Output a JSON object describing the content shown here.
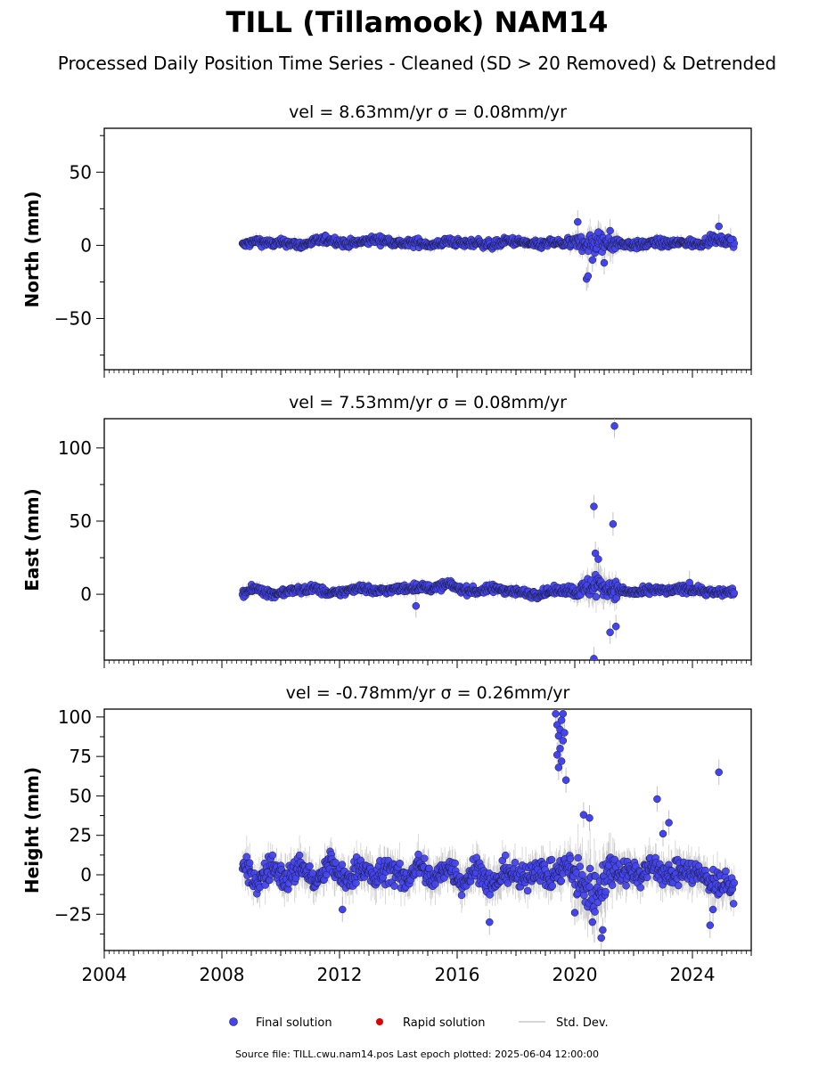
{
  "title": "TILL (Tillamook) NAM14",
  "subtitle": "Processed Daily Position Time Series - Cleaned (SD > 20 Removed) & Detrended",
  "footer": "Source file: TILL.cwu.nam14.pos  Last epoch plotted: 2025-06-04 12:00:00",
  "legend": [
    {
      "label": "Final solution",
      "color": "#4444ee",
      "kind": "dot"
    },
    {
      "label": "Rapid solution",
      "color": "#dd0000",
      "kind": "dot"
    },
    {
      "label": "Std. Dev.",
      "color": "#c8c8c8",
      "kind": "line"
    }
  ],
  "x_ticks": [
    "2004",
    "2008",
    "2012",
    "2016",
    "2020",
    "2024"
  ],
  "colors": {
    "final": "#4444ee",
    "stroke": "#1a1a33",
    "errorbar": "#aaaaaa"
  },
  "chart_data": [
    {
      "type": "scatter",
      "title": "vel = 8.63mm/yr   σ = 0.08mm/yr",
      "ylabel": "North (mm)",
      "xlim": [
        2004,
        2026
      ],
      "ylim": [
        -85,
        80
      ],
      "yticks": [
        50,
        0,
        -50
      ],
      "ytick_labels": [
        "50",
        "0",
        "−50"
      ],
      "data_start": 2008.7,
      "data_end": 2025.42,
      "series": [
        {
          "kind": "trace",
          "x": [
            2008.7,
            2009.2,
            2009.7,
            2010.2,
            2010.7,
            2011.2,
            2011.7,
            2012.2,
            2012.7,
            2013.2,
            2013.7,
            2014.2,
            2014.7,
            2015.2,
            2015.7,
            2016.2,
            2016.7,
            2017.2,
            2017.7,
            2018.2,
            2018.7,
            2019.2,
            2019.7,
            2020.2,
            2020.7,
            2021.2,
            2021.7,
            2022.2,
            2022.7,
            2023.2,
            2023.7,
            2024.2,
            2024.7,
            2025.42
          ],
          "y": [
            0,
            3,
            1,
            2,
            0,
            3,
            4,
            1,
            2,
            4,
            3,
            1,
            2,
            0,
            3,
            1,
            2,
            0,
            3,
            2,
            0,
            2,
            1,
            2,
            1,
            2,
            1,
            0,
            2,
            1,
            2,
            1,
            4,
            2
          ],
          "spread": [
            3,
            3,
            3,
            3,
            3,
            3,
            3,
            3,
            3,
            3,
            3,
            3,
            3,
            3,
            3,
            3,
            3,
            3,
            3,
            3,
            3,
            3,
            3,
            6,
            9,
            7,
            3,
            3,
            3,
            3,
            3,
            3,
            3,
            3
          ]
        },
        {
          "kind": "outliers",
          "x": [
            2020.1,
            2020.4,
            2020.45,
            2020.6,
            2020.8,
            2021.0,
            2021.2,
            2024.9,
            2025.3
          ],
          "y": [
            16,
            -23,
            -21,
            -10,
            9,
            -12,
            10,
            13,
            4
          ]
        }
      ]
    },
    {
      "type": "scatter",
      "title": "vel = 7.53mm/yr   σ = 0.08mm/yr",
      "ylabel": "East (mm)",
      "xlim": [
        2004,
        2026
      ],
      "ylim": [
        -45,
        120
      ],
      "yticks": [
        100,
        50,
        0
      ],
      "ytick_labels": [
        "100",
        "50",
        "0"
      ],
      "data_start": 2008.7,
      "data_end": 2025.42,
      "series": [
        {
          "kind": "trace",
          "x": [
            2008.7,
            2009.2,
            2009.7,
            2010.2,
            2010.7,
            2011.2,
            2011.7,
            2012.2,
            2012.7,
            2013.2,
            2013.7,
            2014.2,
            2014.7,
            2015.2,
            2015.7,
            2016.2,
            2016.7,
            2017.2,
            2017.7,
            2018.2,
            2018.7,
            2019.2,
            2019.7,
            2020.2,
            2020.7,
            2021.2,
            2021.7,
            2022.2,
            2022.7,
            2023.2,
            2023.7,
            2024.2,
            2024.7,
            2025.42
          ],
          "y": [
            1,
            4,
            0,
            2,
            3,
            4,
            0,
            2,
            5,
            2,
            3,
            4,
            5,
            4,
            7,
            3,
            2,
            4,
            3,
            1,
            0,
            2,
            3,
            2,
            7,
            4,
            2,
            1,
            3,
            2,
            4,
            3,
            1,
            2
          ],
          "spread": [
            3,
            3,
            3,
            3,
            3,
            3,
            3,
            3,
            3,
            3,
            3,
            3,
            3,
            3,
            3,
            3,
            3,
            3,
            3,
            3,
            3,
            3,
            3,
            6,
            10,
            8,
            3,
            3,
            3,
            3,
            3,
            3,
            3,
            3
          ]
        },
        {
          "kind": "outliers",
          "x": [
            2021.35,
            2020.65,
            2020.7,
            2020.8,
            2021.3,
            2021.2,
            2021.4,
            2020.65,
            2014.6,
            2023.9
          ],
          "y": [
            115,
            60,
            28,
            24,
            48,
            -26,
            -22,
            -44,
            -8,
            8
          ]
        }
      ]
    },
    {
      "type": "scatter",
      "title": "vel = -0.78mm/yr   σ = 0.26mm/yr",
      "ylabel": "Height (mm)",
      "xlim": [
        2004,
        2026
      ],
      "ylim": [
        -48,
        105
      ],
      "yticks": [
        100,
        75,
        50,
        25,
        0,
        -25
      ],
      "ytick_labels": [
        "100",
        "75",
        "50",
        "25",
        "0",
        "−25"
      ],
      "data_start": 2008.7,
      "data_end": 2025.42,
      "series": [
        {
          "kind": "trace",
          "x": [
            2008.7,
            2009.2,
            2009.7,
            2010.2,
            2010.7,
            2011.2,
            2011.7,
            2012.2,
            2012.7,
            2013.2,
            2013.7,
            2014.2,
            2014.7,
            2015.2,
            2015.7,
            2016.2,
            2016.7,
            2017.2,
            2017.7,
            2018.2,
            2018.7,
            2019.2,
            2019.7,
            2020.2,
            2020.7,
            2021.2,
            2021.7,
            2022.2,
            2022.7,
            2023.2,
            2023.7,
            2024.2,
            2024.7,
            2025.42
          ],
          "y": [
            5,
            -5,
            6,
            -4,
            7,
            -6,
            8,
            -5,
            6,
            -3,
            5,
            -5,
            7,
            -4,
            6,
            -5,
            5,
            -8,
            4,
            -4,
            5,
            -2,
            6,
            -6,
            -12,
            4,
            3,
            0,
            6,
            -2,
            5,
            0,
            -4,
            -8
          ],
          "spread": [
            9,
            9,
            9,
            9,
            9,
            9,
            9,
            9,
            9,
            9,
            9,
            9,
            9,
            9,
            9,
            9,
            9,
            9,
            9,
            9,
            9,
            9,
            9,
            18,
            18,
            12,
            9,
            9,
            9,
            9,
            9,
            9,
            9,
            9
          ]
        },
        {
          "kind": "outliers",
          "x": [
            2019.35,
            2019.4,
            2019.45,
            2019.5,
            2019.55,
            2019.6,
            2019.4,
            2019.5,
            2019.45,
            2019.55,
            2019.6,
            2019.65,
            2019.7,
            2020.3,
            2020.6,
            2020.9,
            2020.95,
            2022.8,
            2023.0,
            2023.2,
            2024.9,
            2024.7,
            2012.1,
            2017.1,
            2020.0,
            2020.5,
            2024.6
          ],
          "y": [
            102,
            95,
            88,
            80,
            72,
            85,
            76,
            92,
            68,
            98,
            102,
            90,
            60,
            38,
            -30,
            -40,
            -35,
            48,
            26,
            33,
            65,
            -22,
            -22,
            -30,
            -24,
            36,
            -32
          ]
        }
      ]
    }
  ]
}
